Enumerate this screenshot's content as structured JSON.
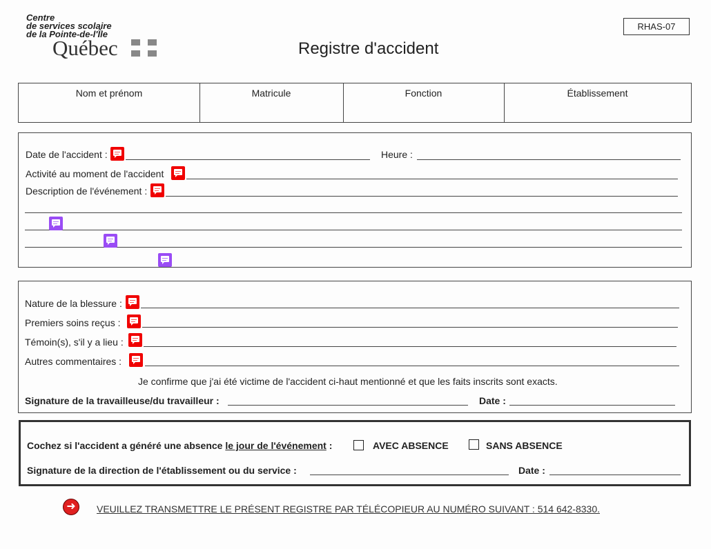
{
  "header": {
    "org_line1": "Centre",
    "org_line2": "de services scolaire",
    "org_line3": "de la Pointe-de-l'Île",
    "logo_text": "Québec",
    "form_code": "RHAS-07",
    "title": "Registre d'accident"
  },
  "employee_table": {
    "columns": [
      "Nom et prénom",
      "Matricule",
      "Fonction",
      "Établissement"
    ]
  },
  "accident": {
    "date_label": "Date de l'accident :",
    "time_label": "Heure :",
    "activity_label": "Activité au moment de l'accident",
    "description_label": "Description de l'événement :"
  },
  "injury": {
    "nature_label": "Nature de la blessure :",
    "first_aid_label": "Premiers soins reçus :",
    "witness_label": "Témoin(s), s'il y a lieu :",
    "comments_label": "Autres commentaires :",
    "confirmation": "Je confirme que j'ai été victime de l'accident ci-haut mentionné et que les faits inscrits sont exacts.",
    "signature_label": "Signature de la travailleuse/du travailleur :",
    "date_label": "Date :"
  },
  "direction": {
    "absence_label": "Cochez si l'accident a généré une absence",
    "absence_label_underlined": "le jour de l'événement",
    "absence_colon": ":",
    "with_absence": "AVEC ABSENCE",
    "without_absence": "SANS ABSENCE",
    "signature_label": "Signature de la direction de l'établissement ou du service :",
    "date_label": "Date :"
  },
  "footer": {
    "instruction": "VEUILLEZ TRANSMETTRE LE PRÉSENT REGISTRE PAR TÉLÉCOPIEUR AU NUMÉRO SUIVANT : 514 642-8330."
  },
  "colors": {
    "comment_red": "#f00000",
    "comment_purple": "#9a4cf5",
    "arrow_red": "#e02020"
  }
}
